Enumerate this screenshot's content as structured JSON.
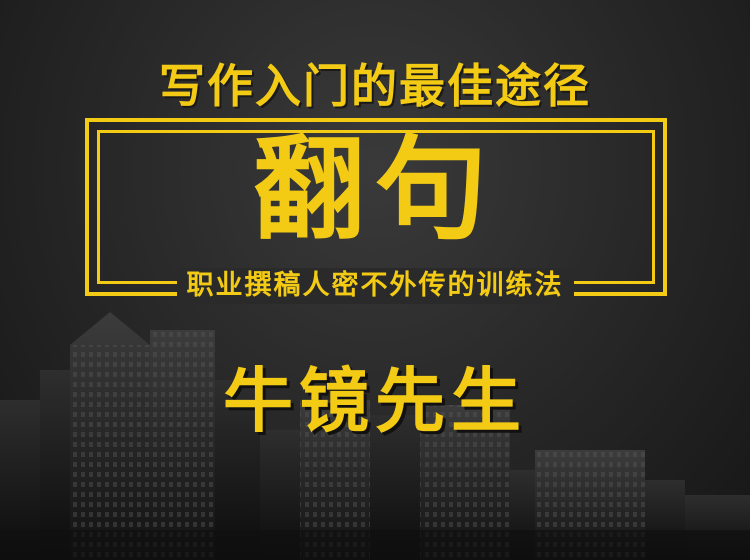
{
  "colors": {
    "gold": "#f3cb15",
    "background": "#2a2a2a"
  },
  "tagline": "写作入门的最佳途径",
  "headline": "翻句",
  "subtitle": "职业撰稿人密不外传的训练法",
  "author": "牛镜先生"
}
